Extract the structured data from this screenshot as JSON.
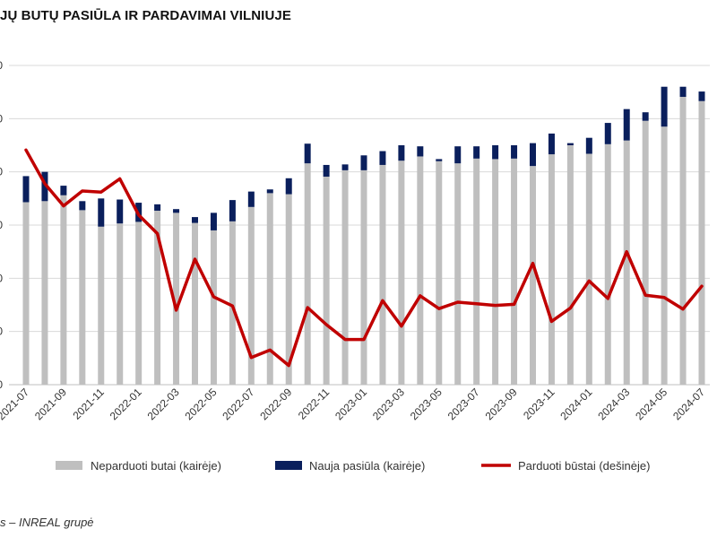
{
  "title": "JŲ BUTŲ PASIŪLA IR PARDAVIMAI VILNIUJE",
  "source": "s – INREAL grupė",
  "chart_data": {
    "type": "bar",
    "stacked": true,
    "grid": true,
    "legend_position": "bottom",
    "y_tick_labels": [
      "0",
      "0",
      "0",
      "0",
      "0",
      "0",
      "0"
    ],
    "ylim_left": [
      0,
      6
    ],
    "ylim_right": [
      0,
      6
    ],
    "categories": [
      "2021-07",
      "2021-08",
      "2021-09",
      "2021-10",
      "2021-11",
      "2021-12",
      "2022-01",
      "2022-02",
      "2022-03",
      "2022-04",
      "2022-05",
      "2022-06",
      "2022-07",
      "2022-08",
      "2022-09",
      "2022-10",
      "2022-11",
      "2022-12",
      "2023-01",
      "2023-02",
      "2023-03",
      "2023-04",
      "2023-05",
      "2023-06",
      "2023-07",
      "2023-08",
      "2023-09",
      "2023-10",
      "2023-11",
      "2023-12",
      "2024-01",
      "2024-02",
      "2024-03",
      "2024-04",
      "2024-05",
      "2024-06",
      "2024-07"
    ],
    "x_tick_labels": [
      "2021-07",
      "2021-09",
      "2021-11",
      "2022-01",
      "2022-03",
      "2022-05",
      "2022-07",
      "2022-09",
      "2022-11",
      "2023-01",
      "2023-03",
      "2023-05",
      "2023-07",
      "2023-09",
      "2023-11",
      "2024-01",
      "2024-03",
      "2024-05",
      "2024-07"
    ],
    "series": [
      {
        "name": "Neparduoti butai (kairėje)",
        "axis": "left",
        "color": "#bfbfbf",
        "values": [
          3.43,
          3.45,
          3.56,
          3.28,
          2.97,
          3.03,
          3.06,
          3.27,
          3.23,
          3.04,
          2.9,
          3.07,
          3.34,
          3.6,
          3.58,
          4.16,
          3.91,
          4.03,
          4.03,
          4.13,
          4.21,
          4.29,
          4.2,
          4.16,
          4.25,
          4.24,
          4.25,
          4.11,
          4.33,
          4.5,
          4.34,
          4.52,
          4.59,
          4.96,
          4.85,
          5.41,
          5.33
        ]
      },
      {
        "name": "Nauja pasiūla (kairėje)",
        "axis": "left",
        "color": "#0a1f5c",
        "values": [
          0.49,
          0.55,
          0.18,
          0.17,
          0.53,
          0.45,
          0.36,
          0.12,
          0.07,
          0.11,
          0.33,
          0.4,
          0.29,
          0.07,
          0.3,
          0.37,
          0.22,
          0.11,
          0.28,
          0.26,
          0.29,
          0.19,
          0.04,
          0.32,
          0.23,
          0.26,
          0.25,
          0.43,
          0.39,
          0.04,
          0.3,
          0.4,
          0.59,
          0.16,
          0.75,
          0.19,
          0.18
        ]
      },
      {
        "name": "Parduoti būstai (dešinėje)",
        "axis": "right",
        "color": "#c00000",
        "values": [
          4.41,
          3.78,
          3.36,
          3.64,
          3.62,
          3.87,
          3.19,
          2.84,
          1.4,
          2.36,
          1.65,
          1.48,
          0.51,
          0.65,
          0.36,
          1.45,
          1.13,
          0.85,
          0.85,
          1.58,
          1.1,
          1.67,
          1.43,
          1.55,
          1.52,
          1.49,
          1.51,
          2.28,
          1.19,
          1.44,
          1.95,
          1.62,
          2.5,
          1.68,
          1.64,
          1.42,
          1.85
        ]
      }
    ]
  }
}
